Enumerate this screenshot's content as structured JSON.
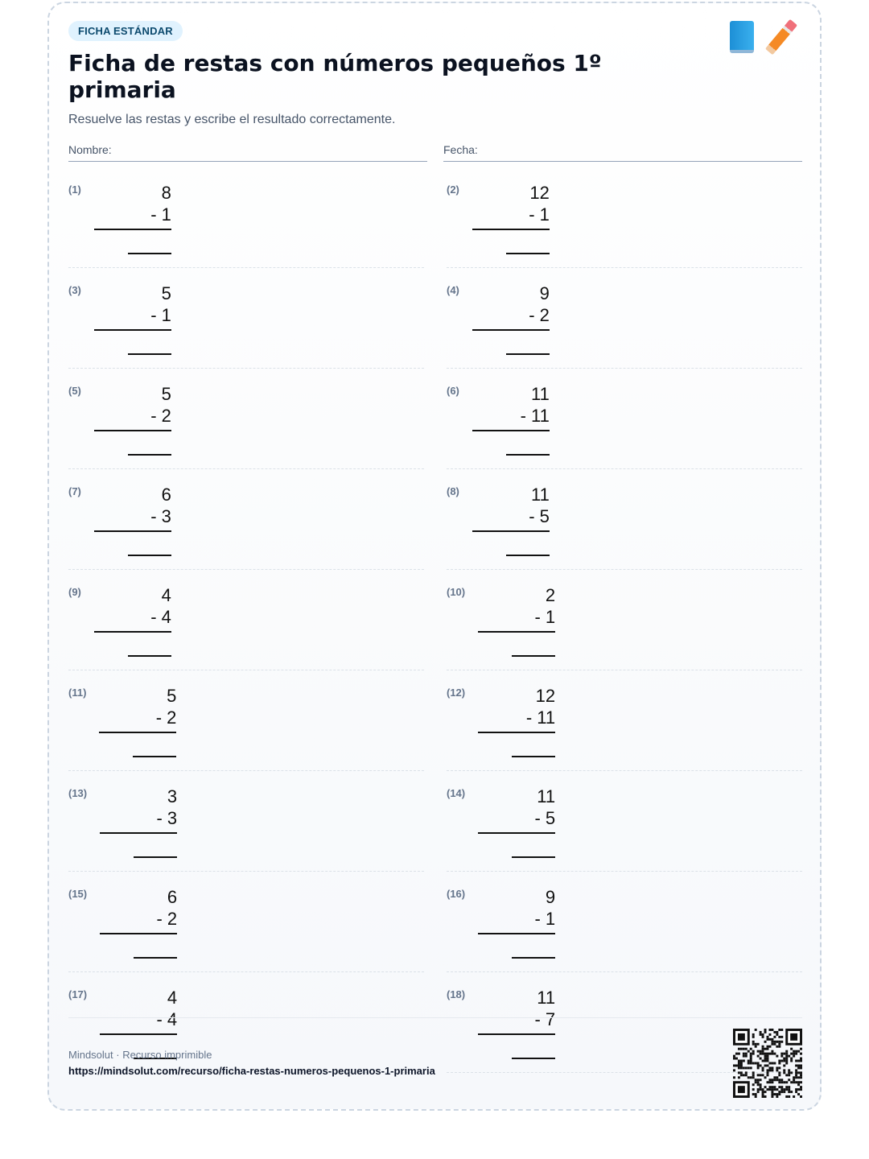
{
  "header": {
    "badge": "FICHA ESTÁNDAR",
    "title": "Ficha de restas con números pequeños 1º primaria",
    "subtitle": "Resuelve las restas y escribe el resultado correctamente.",
    "icons": [
      "book-icon",
      "pencil-icon"
    ]
  },
  "fields": {
    "name_label": "Nombre:",
    "date_label": "Fecha:"
  },
  "problems": [
    {
      "label": "(1)",
      "top": "8",
      "bottom": "- 1"
    },
    {
      "label": "(2)",
      "top": "12",
      "bottom": "- 1"
    },
    {
      "label": "(3)",
      "top": "5",
      "bottom": "- 1"
    },
    {
      "label": "(4)",
      "top": "9",
      "bottom": "- 2"
    },
    {
      "label": "(5)",
      "top": "5",
      "bottom": "- 2"
    },
    {
      "label": "(6)",
      "top": "11",
      "bottom": "- 11"
    },
    {
      "label": "(7)",
      "top": "6",
      "bottom": "- 3"
    },
    {
      "label": "(8)",
      "top": "11",
      "bottom": "- 5"
    },
    {
      "label": "(9)",
      "top": "4",
      "bottom": "- 4"
    },
    {
      "label": "(10)",
      "top": "2",
      "bottom": "- 1"
    },
    {
      "label": "(11)",
      "top": "5",
      "bottom": "- 2"
    },
    {
      "label": "(12)",
      "top": "12",
      "bottom": "- 11"
    },
    {
      "label": "(13)",
      "top": "3",
      "bottom": "- 3"
    },
    {
      "label": "(14)",
      "top": "11",
      "bottom": "- 5"
    },
    {
      "label": "(15)",
      "top": "6",
      "bottom": "- 2"
    },
    {
      "label": "(16)",
      "top": "9",
      "bottom": "- 1"
    },
    {
      "label": "(17)",
      "top": "4",
      "bottom": "- 4"
    },
    {
      "label": "(18)",
      "top": "11",
      "bottom": "- 7"
    }
  ],
  "footer": {
    "brand": "Mindsolut · Recurso imprimible",
    "url": "https://mindsolut.com/recurso/ficha-restas-numeros-pequenos-1-primaria",
    "qr_icon": "qr-code-icon"
  }
}
